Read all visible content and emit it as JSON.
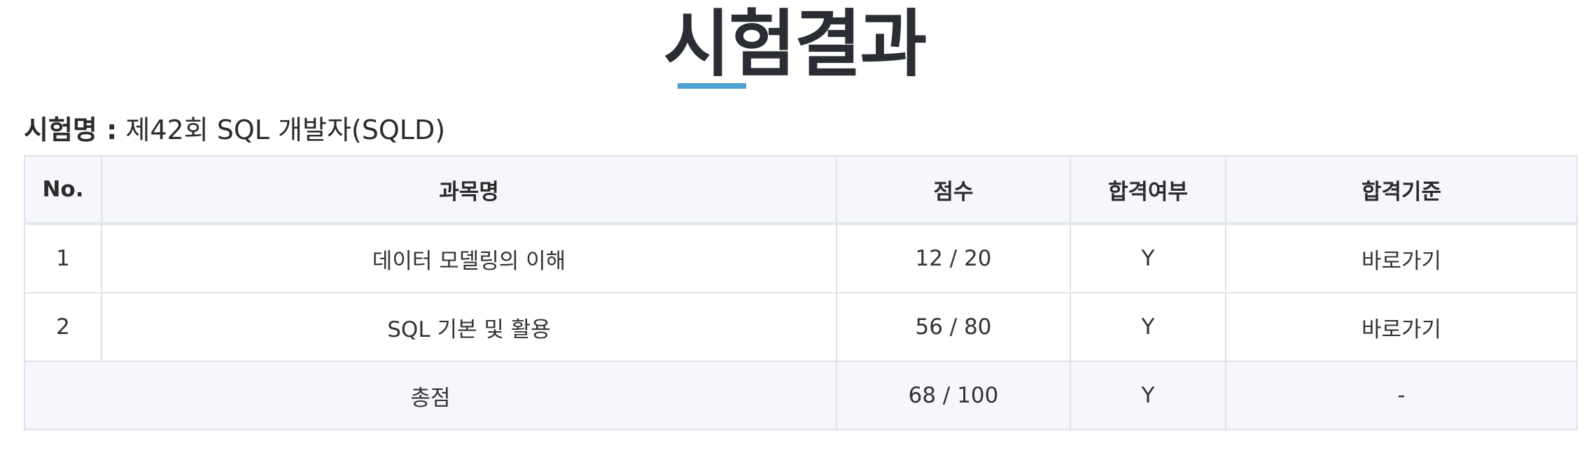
{
  "page": {
    "title": "시험결과"
  },
  "exam": {
    "label": "시험명 :",
    "name": "제42회 SQL 개발자(SQLD)"
  },
  "table": {
    "headers": {
      "no": "No.",
      "subject": "과목명",
      "score": "점수",
      "pass": "합격여부",
      "criteria": "합격기준"
    },
    "rows": [
      {
        "no": "1",
        "subject": "데이터 모델링의 이해",
        "score": "12 / 20",
        "pass": "Y",
        "criteria": "바로가기"
      },
      {
        "no": "2",
        "subject": "SQL 기본 및 활용",
        "score": "56 / 80",
        "pass": "Y",
        "criteria": "바로가기"
      }
    ],
    "total": {
      "label": "총점",
      "score": "68 / 100",
      "pass": "Y",
      "criteria": "-"
    }
  },
  "colors": {
    "accent": "#4ea1d3",
    "header_bg": "#f5f7fc",
    "border": "#e1e3e8",
    "title": "#2a2d33"
  }
}
